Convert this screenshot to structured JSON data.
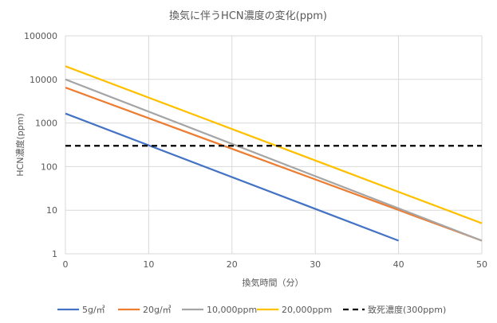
{
  "chart_data": {
    "type": "line",
    "title": "換気に伴うHCN濃度の変化(ppm)",
    "xlabel": "換気時間（分）",
    "ylabel": "HCN濃度(ppm)",
    "xlim": [
      0,
      50
    ],
    "ylim": [
      1,
      100000
    ],
    "yscale": "log",
    "x_ticks": [
      0,
      10,
      20,
      30,
      40,
      50
    ],
    "y_ticks": [
      1,
      10,
      100,
      1000,
      10000,
      100000
    ],
    "grid": true,
    "legend_position": "bottom",
    "series": [
      {
        "name": "5g/㎥",
        "color": "#4472C4",
        "dash": "solid",
        "x": [
          0,
          40
        ],
        "y": [
          1650,
          2
        ]
      },
      {
        "name": "20g/㎥",
        "color": "#ED7D31",
        "dash": "solid",
        "x": [
          0,
          50
        ],
        "y": [
          6500,
          2
        ]
      },
      {
        "name": "10,000ppm",
        "color": "#A5A5A5",
        "dash": "solid",
        "x": [
          0,
          50
        ],
        "y": [
          10000,
          2
        ]
      },
      {
        "name": "20,000ppm",
        "color": "#FFC000",
        "dash": "solid",
        "x": [
          0,
          50
        ],
        "y": [
          20000,
          5
        ]
      },
      {
        "name": "致死濃度(300ppm)",
        "color": "#000000",
        "dash": "dashed",
        "x": [
          0,
          50
        ],
        "y": [
          300,
          300
        ]
      }
    ]
  }
}
